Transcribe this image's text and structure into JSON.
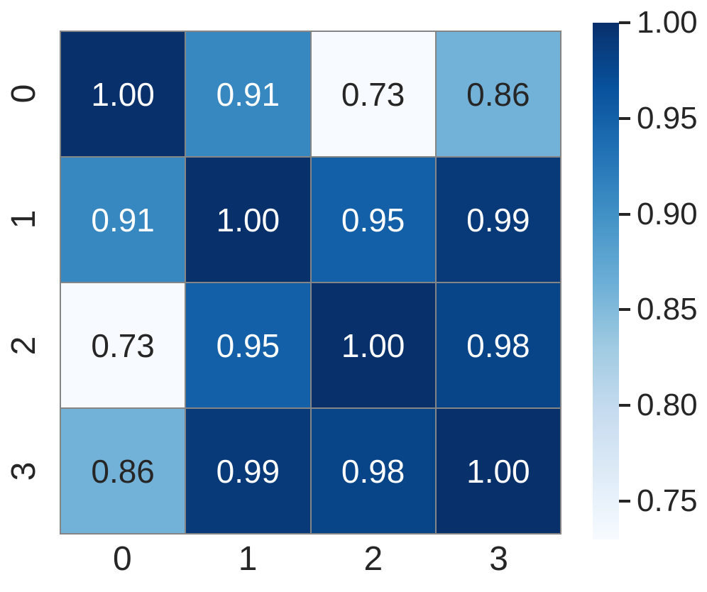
{
  "chart_data": {
    "type": "heatmap",
    "title": "",
    "xlabel": "",
    "ylabel": "",
    "x_tick_labels": [
      "0",
      "1",
      "2",
      "3"
    ],
    "y_tick_labels": [
      "0",
      "1",
      "2",
      "3"
    ],
    "matrix": [
      [
        1.0,
        0.91,
        0.73,
        0.86
      ],
      [
        0.91,
        1.0,
        0.95,
        0.99
      ],
      [
        0.73,
        0.95,
        1.0,
        0.98
      ],
      [
        0.86,
        0.99,
        0.98,
        1.0
      ]
    ],
    "cell_labels": [
      [
        "1.00",
        "0.91",
        "0.73",
        "0.86"
      ],
      [
        "0.91",
        "1.00",
        "0.95",
        "0.99"
      ],
      [
        "0.73",
        "0.95",
        "1.00",
        "0.98"
      ],
      [
        "0.86",
        "0.99",
        "0.98",
        "1.00"
      ]
    ],
    "colormap": "Blues",
    "vmin": 0.73,
    "vmax": 1.0,
    "grid_on": true,
    "grid_line_color": "#858585",
    "tick_text_color": "#262626",
    "legend_position": "right",
    "colorbar_ticks": [
      {
        "label": "1.00",
        "value": 1.0
      },
      {
        "label": "0.95",
        "value": 0.95
      },
      {
        "label": "0.90",
        "value": 0.9
      },
      {
        "label": "0.85",
        "value": 0.85
      },
      {
        "label": "0.80",
        "value": 0.8
      },
      {
        "label": "0.75",
        "value": 0.75
      }
    ],
    "colorbar_gradient_stops": [
      {
        "pos": 0,
        "color": "#f7fbff"
      },
      {
        "pos": 12.5,
        "color": "#deebf7"
      },
      {
        "pos": 25,
        "color": "#c6dbef"
      },
      {
        "pos": 37.5,
        "color": "#9ecae1"
      },
      {
        "pos": 50,
        "color": "#6baed6"
      },
      {
        "pos": 62.5,
        "color": "#4292c6"
      },
      {
        "pos": 75,
        "color": "#2171b5"
      },
      {
        "pos": 87.5,
        "color": "#08519c"
      },
      {
        "pos": 100,
        "color": "#08306b"
      }
    ],
    "value_styles": {
      "1.00": {
        "bg": "#08306b",
        "text": "#ffffff"
      },
      "0.99": {
        "bg": "#083a7a",
        "text": "#ffffff"
      },
      "0.98": {
        "bg": "#084488",
        "text": "#ffffff"
      },
      "0.95": {
        "bg": "#1460a8",
        "text": "#ffffff"
      },
      "0.91": {
        "bg": "#3787c0",
        "text": "#ffffff"
      },
      "0.86": {
        "bg": "#73b2d8",
        "text": "#262626"
      },
      "0.73": {
        "bg": "#f7fbff",
        "text": "#262626"
      }
    }
  }
}
